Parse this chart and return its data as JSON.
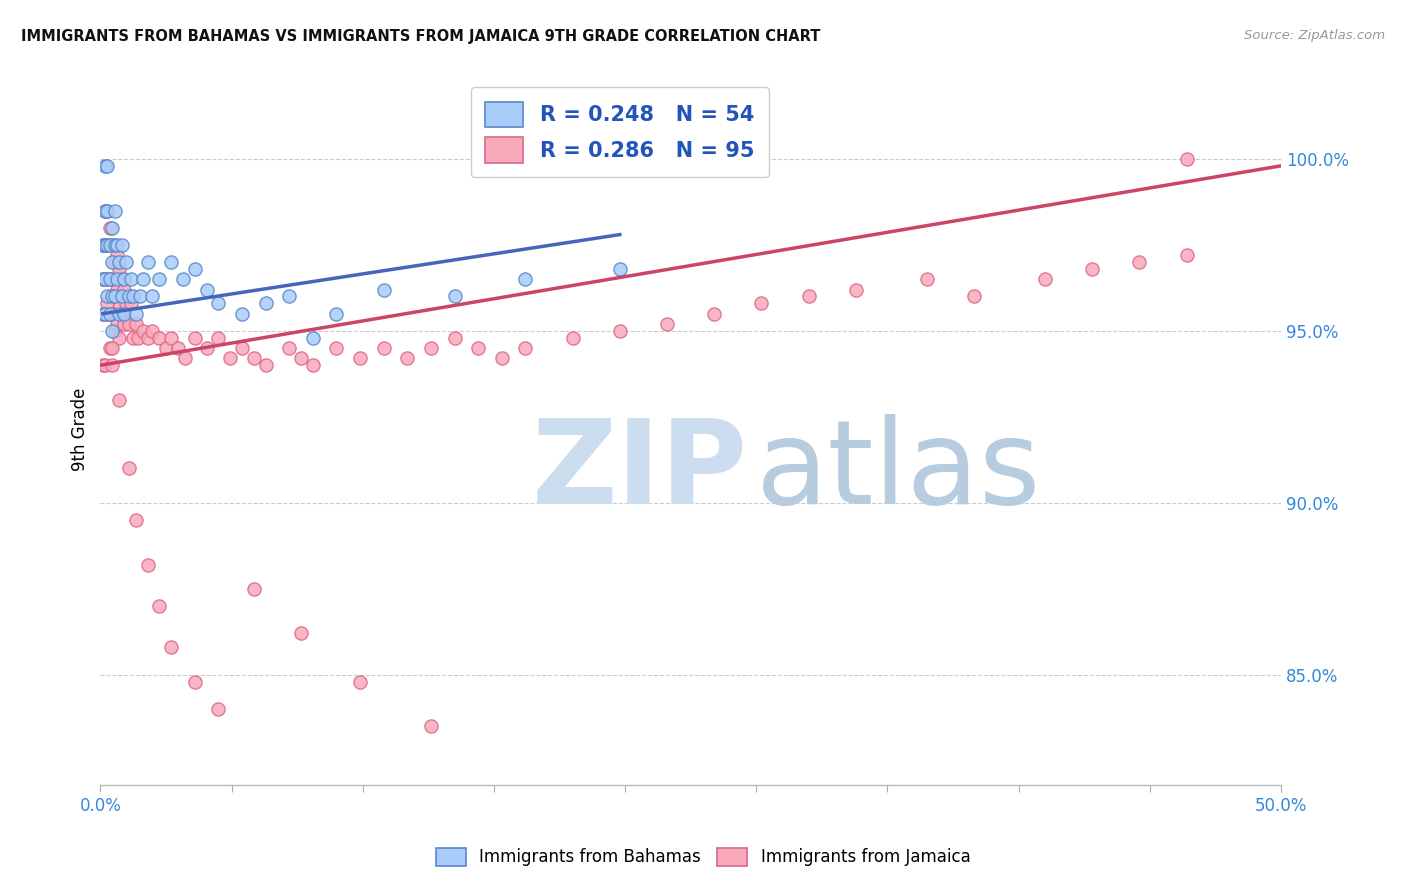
{
  "title": "IMMIGRANTS FROM BAHAMAS VS IMMIGRANTS FROM JAMAICA 9TH GRADE CORRELATION CHART",
  "source": "Source: ZipAtlas.com",
  "ylabel": "9th Grade",
  "right_yticks": [
    0.85,
    0.9,
    0.95,
    1.0
  ],
  "right_yticklabels": [
    "85.0%",
    "90.0%",
    "95.0%",
    "100.0%"
  ],
  "xmin": 0.0,
  "xmax": 0.5,
  "ymin": 0.818,
  "ymax": 1.025,
  "bahamas_fill": "#aaccf8",
  "bahamas_edge": "#5588cc",
  "jamaica_fill": "#f8aabb",
  "jamaica_edge": "#dd6688",
  "bahamas_line_color": "#4466bb",
  "jamaica_line_color": "#cc4466",
  "watermark_zip": "#ccddf0",
  "watermark_atlas": "#b8cce0",
  "bahamas_x": [
    0.001,
    0.001,
    0.001,
    0.002,
    0.002,
    0.002,
    0.002,
    0.002,
    0.003,
    0.003,
    0.003,
    0.003,
    0.004,
    0.004,
    0.004,
    0.005,
    0.005,
    0.005,
    0.005,
    0.006,
    0.006,
    0.006,
    0.007,
    0.007,
    0.008,
    0.008,
    0.009,
    0.009,
    0.01,
    0.01,
    0.011,
    0.012,
    0.013,
    0.014,
    0.015,
    0.017,
    0.018,
    0.02,
    0.022,
    0.025,
    0.03,
    0.035,
    0.04,
    0.045,
    0.05,
    0.06,
    0.07,
    0.08,
    0.09,
    0.1,
    0.12,
    0.15,
    0.18,
    0.22
  ],
  "bahamas_y": [
    0.975,
    0.965,
    0.955,
    0.985,
    0.998,
    0.975,
    0.965,
    0.955,
    0.998,
    0.985,
    0.975,
    0.96,
    0.975,
    0.965,
    0.955,
    0.98,
    0.97,
    0.96,
    0.95,
    0.985,
    0.975,
    0.96,
    0.975,
    0.965,
    0.97,
    0.955,
    0.975,
    0.96,
    0.965,
    0.955,
    0.97,
    0.96,
    0.965,
    0.96,
    0.955,
    0.96,
    0.965,
    0.97,
    0.96,
    0.965,
    0.97,
    0.965,
    0.968,
    0.962,
    0.958,
    0.955,
    0.958,
    0.96,
    0.948,
    0.955,
    0.962,
    0.96,
    0.965,
    0.968
  ],
  "jamaica_x": [
    0.001,
    0.001,
    0.001,
    0.001,
    0.002,
    0.002,
    0.002,
    0.002,
    0.002,
    0.003,
    0.003,
    0.003,
    0.003,
    0.004,
    0.004,
    0.004,
    0.004,
    0.005,
    0.005,
    0.005,
    0.005,
    0.006,
    0.006,
    0.006,
    0.007,
    0.007,
    0.007,
    0.008,
    0.008,
    0.008,
    0.009,
    0.009,
    0.01,
    0.01,
    0.011,
    0.012,
    0.013,
    0.014,
    0.015,
    0.016,
    0.018,
    0.02,
    0.022,
    0.025,
    0.028,
    0.03,
    0.033,
    0.036,
    0.04,
    0.045,
    0.05,
    0.055,
    0.06,
    0.065,
    0.07,
    0.08,
    0.085,
    0.09,
    0.1,
    0.11,
    0.12,
    0.13,
    0.14,
    0.15,
    0.16,
    0.17,
    0.18,
    0.2,
    0.22,
    0.24,
    0.26,
    0.28,
    0.3,
    0.32,
    0.35,
    0.37,
    0.4,
    0.42,
    0.44,
    0.46,
    0.003,
    0.005,
    0.008,
    0.012,
    0.015,
    0.02,
    0.025,
    0.03,
    0.04,
    0.05,
    0.065,
    0.085,
    0.11,
    0.14,
    0.46
  ],
  "jamaica_y": [
    0.975,
    0.965,
    0.955,
    0.94,
    0.985,
    0.975,
    0.965,
    0.955,
    0.94,
    0.985,
    0.975,
    0.965,
    0.955,
    0.98,
    0.965,
    0.955,
    0.945,
    0.975,
    0.965,
    0.955,
    0.94,
    0.97,
    0.96,
    0.95,
    0.972,
    0.962,
    0.952,
    0.968,
    0.958,
    0.948,
    0.965,
    0.955,
    0.962,
    0.952,
    0.958,
    0.952,
    0.958,
    0.948,
    0.952,
    0.948,
    0.95,
    0.948,
    0.95,
    0.948,
    0.945,
    0.948,
    0.945,
    0.942,
    0.948,
    0.945,
    0.948,
    0.942,
    0.945,
    0.942,
    0.94,
    0.945,
    0.942,
    0.94,
    0.945,
    0.942,
    0.945,
    0.942,
    0.945,
    0.948,
    0.945,
    0.942,
    0.945,
    0.948,
    0.95,
    0.952,
    0.955,
    0.958,
    0.96,
    0.962,
    0.965,
    0.96,
    0.965,
    0.968,
    0.97,
    0.972,
    0.958,
    0.945,
    0.93,
    0.91,
    0.895,
    0.882,
    0.87,
    0.858,
    0.848,
    0.84,
    0.875,
    0.862,
    0.848,
    0.835,
    1.0
  ],
  "bah_line_x": [
    0.001,
    0.22
  ],
  "bah_line_y": [
    0.955,
    0.978
  ],
  "jam_line_x": [
    0.0,
    0.5
  ],
  "jam_line_y": [
    0.94,
    0.998
  ]
}
